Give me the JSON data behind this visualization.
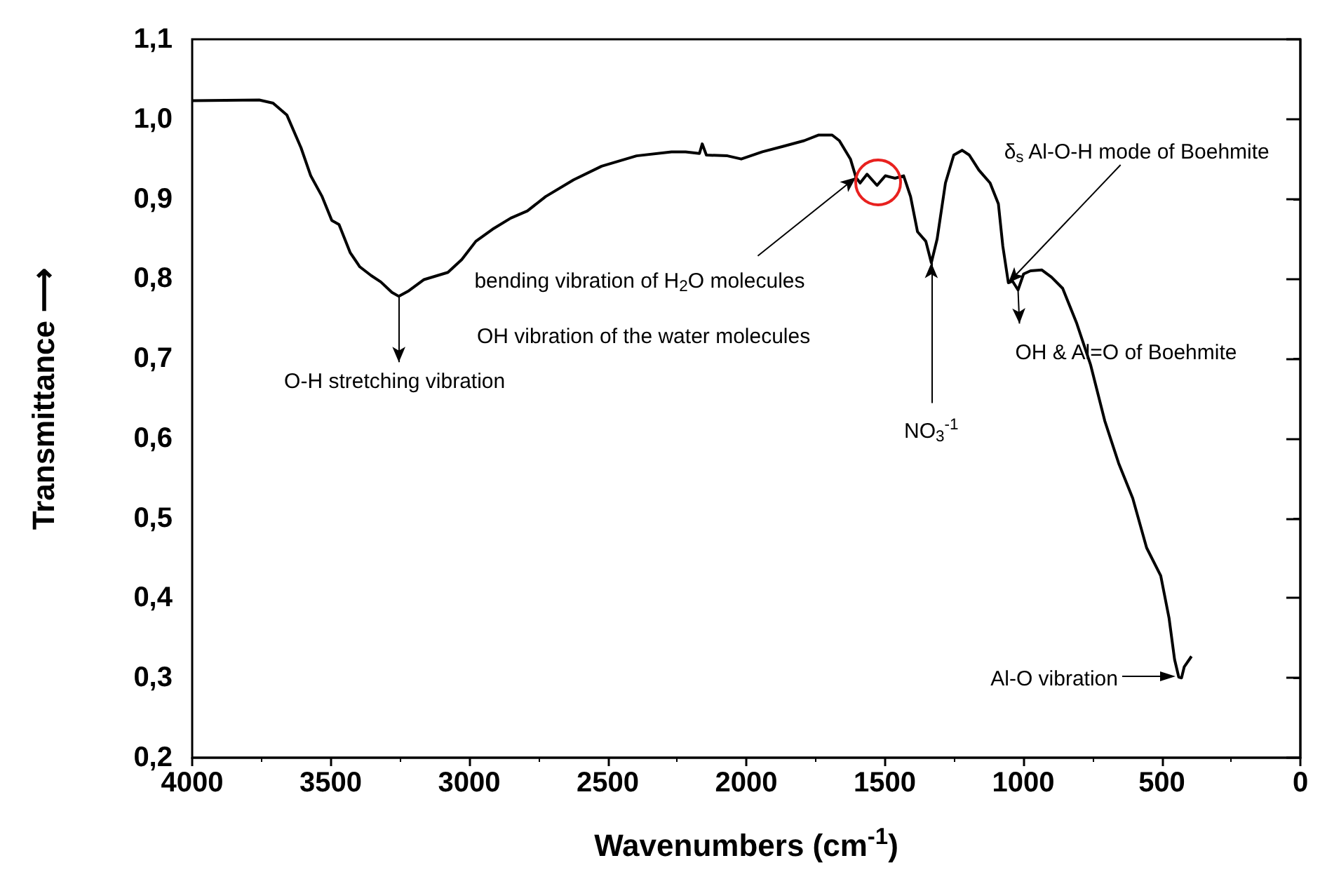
{
  "chart_data": {
    "type": "line",
    "xlabel": "Wavenumbers (cm$^{-1}$)",
    "ylabel": "Transmittance ⟶",
    "xlim": [
      4000,
      0
    ],
    "xticks": [
      4000,
      3500,
      3000,
      2500,
      2000,
      1500,
      1000,
      500,
      0
    ],
    "ylim": [
      0.2,
      1.1
    ],
    "yticks": [
      {
        "value": 0.2,
        "label": "0,2"
      },
      {
        "value": 0.3,
        "label": "0,3"
      },
      {
        "value": 0.4,
        "label": "0,4"
      },
      {
        "value": 0.5,
        "label": "0,5"
      },
      {
        "value": 0.6,
        "label": "0,6"
      },
      {
        "value": 0.7,
        "label": "0,7"
      },
      {
        "value": 0.8,
        "label": "0,8"
      },
      {
        "value": 0.9,
        "label": "0,9"
      },
      {
        "value": 1.0,
        "label": "1,0"
      },
      {
        "value": 1.1,
        "label": "1,1"
      }
    ],
    "x": [
      4000,
      3758,
      3708,
      3658,
      3607,
      3572,
      3531,
      3496,
      3470,
      3430,
      3395,
      3354,
      3319,
      3279,
      3254,
      3218,
      3163,
      3077,
      3027,
      2976,
      2916,
      2850,
      2790,
      2724,
      2623,
      2522,
      2396,
      2270,
      2219,
      2169,
      2159,
      2144,
      2068,
      2018,
      1942,
      1866,
      1791,
      1740,
      1690,
      1664,
      1624,
      1604,
      1589,
      1564,
      1528,
      1498,
      1463,
      1432,
      1407,
      1382,
      1352,
      1332,
      1311,
      1281,
      1251,
      1221,
      1195,
      1160,
      1120,
      1090,
      1074,
      1054,
      1039,
      1019,
      999,
      974,
      933,
      898,
      858,
      807,
      757,
      706,
      656,
      605,
      555,
      504,
      474,
      454,
      439,
      429,
      419,
      393
    ],
    "series": [
      {
        "color": "#000000",
        "values": [
          1.023,
          1.024,
          1.02,
          1.005,
          0.964,
          0.929,
          0.903,
          0.873,
          0.868,
          0.833,
          0.815,
          0.804,
          0.796,
          0.783,
          0.778,
          0.785,
          0.799,
          0.808,
          0.824,
          0.847,
          0.862,
          0.876,
          0.885,
          0.903,
          0.924,
          0.941,
          0.954,
          0.959,
          0.959,
          0.957,
          0.969,
          0.955,
          0.954,
          0.95,
          0.959,
          0.966,
          0.973,
          0.98,
          0.98,
          0.973,
          0.95,
          0.927,
          0.92,
          0.931,
          0.917,
          0.929,
          0.926,
          0.929,
          0.903,
          0.859,
          0.847,
          0.82,
          0.85,
          0.92,
          0.955,
          0.961,
          0.955,
          0.936,
          0.92,
          0.894,
          0.841,
          0.795,
          0.797,
          0.786,
          0.806,
          0.81,
          0.811,
          0.802,
          0.788,
          0.744,
          0.692,
          0.622,
          0.569,
          0.525,
          0.463,
          0.428,
          0.375,
          0.323,
          0.301,
          0.3,
          0.314,
          0.327
        ]
      }
    ],
    "annotations": [
      {
        "text": "O-H stretching vibration",
        "x": 3254,
        "y": 0.778
      },
      {
        "text": "bending vibration of H$_{2}$O molecules",
        "x": 1604,
        "y": 0.927
      },
      "OH vibration of the water molecules",
      {
        "text": "NO$_{3}$$^{-1}$",
        "x": 1332,
        "y": 0.82
      },
      {
        "text": "δ$_{s}$ Al-O-H mode of Boehmite",
        "x": 1054,
        "y": 0.795
      },
      {
        "text": "OH & Al=O of Boehmite",
        "x": 1019,
        "y": 0.786
      },
      "Al-O vibration"
    ]
  }
}
